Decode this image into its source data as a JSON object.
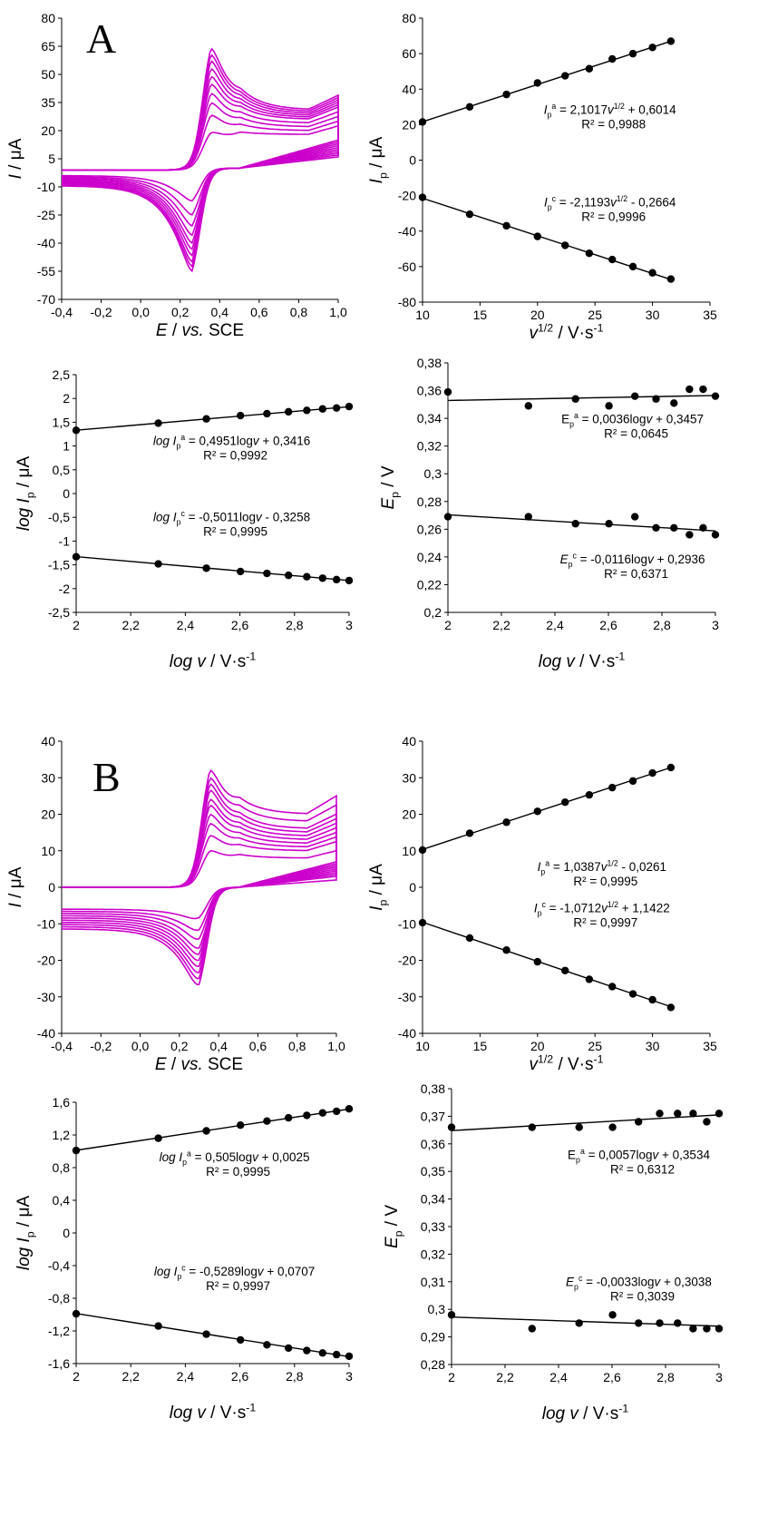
{
  "panels": [
    {
      "letter": "A"
    },
    {
      "letter": "B"
    }
  ],
  "chart_data": [
    {
      "type": "line",
      "panel": "A",
      "description_role": "cyclic-voltammograms",
      "xlabel": [
        "E",
        " / ",
        "vs.",
        " SCE"
      ],
      "ylabel": [
        "I",
        " / μA"
      ],
      "xlim": [
        -0.4,
        1.0
      ],
      "ylim": [
        -70,
        80
      ],
      "xticks": [
        -0.4,
        -0.2,
        0.0,
        0.2,
        0.4,
        0.6,
        0.8,
        1.0
      ],
      "xtick_labels": [
        "-0,4",
        "-0,2",
        "0,0",
        "0,2",
        "0,4",
        "0,6",
        "0,8",
        "1,0"
      ],
      "yticks": [
        -70,
        -55,
        -40,
        -25,
        -10,
        5,
        20,
        35,
        50,
        65,
        80
      ],
      "ytick_labels": [
        "-70",
        "-55",
        "-40",
        "-25",
        "-10",
        "5",
        "20",
        "35",
        "50",
        "65",
        "80"
      ],
      "line_color": "#cc00cc",
      "cv": {
        "Ea": 0.355,
        "Ec": 0.26,
        "ipa": [
          23,
          34,
          42,
          48,
          54,
          59,
          64,
          69,
          73,
          77
        ],
        "ipc": [
          -21,
          -30,
          -37,
          -43,
          -48,
          -52,
          -56,
          -60,
          -63,
          -66
        ],
        "base_low": -1,
        "base_high_ox": [
          18,
          20,
          22,
          24,
          26,
          27,
          28,
          29,
          30,
          31
        ],
        "base_high_red": [
          6,
          7,
          8,
          9,
          10,
          11,
          12,
          13,
          14,
          15
        ],
        "base_neg": -4
      }
    },
    {
      "type": "scatter",
      "panel": "A",
      "xlabel": [
        "v",
        "1/2",
        " / V·s",
        "-1"
      ],
      "ylabel": [
        "I",
        "p",
        " / μA"
      ],
      "xlim": [
        10,
        35
      ],
      "ylim": [
        -80,
        80
      ],
      "xticks": [
        10,
        15,
        20,
        25,
        30,
        35
      ],
      "xtick_labels": [
        "10",
        "15",
        "20",
        "25",
        "30",
        "35"
      ],
      "yticks": [
        -80,
        -60,
        -40,
        -20,
        0,
        20,
        40,
        60,
        80
      ],
      "ytick_labels": [
        "-80",
        "-60",
        "-40",
        "-20",
        "0",
        "20",
        "40",
        "60",
        "80"
      ],
      "series": [
        {
          "x": [
            10,
            14.1,
            17.3,
            20,
            22.4,
            24.5,
            26.5,
            28.3,
            30,
            31.6
          ],
          "y": [
            21.5,
            30,
            37,
            43.5,
            47.5,
            51.5,
            57,
            60,
            63.5,
            67
          ],
          "fit": [
            2.1017,
            0.6014
          ]
        },
        {
          "x": [
            10,
            14.1,
            17.3,
            20,
            22.4,
            24.5,
            26.5,
            28.3,
            30,
            31.6
          ],
          "y": [
            -21,
            -30.5,
            -37,
            -43,
            -48,
            -52.5,
            -56,
            -60,
            -63.5,
            -67
          ],
          "fit": [
            -2.1193,
            -0.2664
          ]
        }
      ],
      "annotations": [
        {
          "pre": "I",
          "sub": "p",
          "sup": "a",
          "text": " = 2,1017",
          "var": "v",
          "varsup": "1/2",
          "tail": " + 0,6014",
          "r2": "R² = 0,9988",
          "ax": 26.3,
          "ay": 26
        },
        {
          "pre": "I",
          "sub": "p",
          "sup": "c",
          "text": " = -2,1193",
          "var": "v",
          "varsup": "1/2",
          "tail": " - 0,2664",
          "r2": "R² = 0,9996",
          "ax": 26.3,
          "ay": -26
        }
      ]
    },
    {
      "type": "scatter",
      "panel": "A",
      "xlabel": [
        "log ",
        "v",
        " / V·s",
        "-1"
      ],
      "ylabel": [
        "log ",
        "I",
        "p",
        " / μA"
      ],
      "xlim": [
        2,
        3
      ],
      "ylim": [
        -2.5,
        2.5
      ],
      "xticks": [
        2,
        2.2,
        2.4,
        2.6,
        2.8,
        3
      ],
      "xtick_labels": [
        "2",
        "2,2",
        "2,4",
        "2,6",
        "2,8",
        "3"
      ],
      "yticks": [
        -2.5,
        -2,
        -1.5,
        -1,
        -0.5,
        0,
        0.5,
        1,
        1.5,
        2,
        2.5
      ],
      "ytick_labels": [
        "-2,5",
        "-2",
        "-1,5",
        "-1",
        "-0,5",
        "0",
        "0,5",
        "1",
        "1,5",
        "2",
        "2,5"
      ],
      "series": [
        {
          "x": [
            2,
            2.301,
            2.477,
            2.602,
            2.699,
            2.778,
            2.845,
            2.903,
            2.954,
            3
          ],
          "y": [
            1.33,
            1.48,
            1.57,
            1.64,
            1.68,
            1.72,
            1.75,
            1.78,
            1.8,
            1.83
          ],
          "fit": [
            0.4951,
            0.3416
          ]
        },
        {
          "x": [
            2,
            2.301,
            2.477,
            2.602,
            2.699,
            2.778,
            2.845,
            2.903,
            2.954,
            3
          ],
          "y": [
            -1.33,
            -1.48,
            -1.57,
            -1.64,
            -1.68,
            -1.72,
            -1.75,
            -1.78,
            -1.81,
            -1.83
          ],
          "fit": [
            -0.5011,
            -0.3258
          ]
        }
      ],
      "annotations": [
        {
          "pre": "log I",
          "sub": "p",
          "sup": "a",
          "text": " = 0,4951log",
          "var": "v",
          "varsup": "",
          "tail": " + 0,3416",
          "r2": "R² = 0,9992",
          "ax": 2.57,
          "ay": 1.02
        },
        {
          "pre": "log I",
          "sub": "p",
          "sup": "c",
          "text": " = -0,5011log",
          "var": "v",
          "varsup": "",
          "tail": " - 0,3258",
          "r2": "R² = 0,9995",
          "ax": 2.57,
          "ay": -0.58
        }
      ]
    },
    {
      "type": "scatter",
      "panel": "A",
      "xlabel": [
        "log ",
        "v",
        " / V·s",
        "-1"
      ],
      "ylabel": [
        "E",
        "p",
        " / V"
      ],
      "xlim": [
        2,
        3
      ],
      "ylim": [
        0.2,
        0.38
      ],
      "xticks": [
        2,
        2.2,
        2.4,
        2.6,
        2.8,
        3
      ],
      "xtick_labels": [
        "2",
        "2,2",
        "2,4",
        "2,6",
        "2,8",
        "3"
      ],
      "yticks": [
        0.2,
        0.22,
        0.24,
        0.26,
        0.28,
        0.3,
        0.32,
        0.34,
        0.36,
        0.38
      ],
      "ytick_labels": [
        "0,2",
        "0,22",
        "0,24",
        "0,26",
        "0,28",
        "0,3",
        "0,32",
        "0,34",
        "0,36",
        "0,38"
      ],
      "series": [
        {
          "x": [
            2,
            2.301,
            2.477,
            2.602,
            2.699,
            2.778,
            2.845,
            2.903,
            2.954,
            3
          ],
          "y": [
            0.359,
            0.349,
            0.354,
            0.349,
            0.356,
            0.354,
            0.351,
            0.361,
            0.361,
            0.356
          ],
          "fit": [
            0.0036,
            0.3457
          ]
        },
        {
          "x": [
            2,
            2.301,
            2.477,
            2.602,
            2.699,
            2.778,
            2.845,
            2.903,
            2.954,
            3
          ],
          "y": [
            0.269,
            0.269,
            0.264,
            0.264,
            0.269,
            0.261,
            0.261,
            0.256,
            0.261,
            0.256
          ],
          "fit": [
            -0.0116,
            0.2936
          ]
        }
      ],
      "annotations": [
        {
          "pre": "E",
          "sub": "p",
          "sup": "a",
          "text": " = 0,0036log",
          "var": "v",
          "varsup": "",
          "tail": " + 0,3457",
          "r2": "R² = 0,0645",
          "ax": 2.69,
          "ay": 0.3365,
          "plain": true
        },
        {
          "pre": "E",
          "sub": "p",
          "sup": "c",
          "text": " = -0,0116log",
          "var": "v",
          "varsup": "",
          "tail": " + 0,2936",
          "r2": "R² = 0,6371",
          "ax": 2.69,
          "ay": 0.2355
        }
      ]
    },
    {
      "type": "line",
      "panel": "B",
      "xlabel": [
        "E",
        " / ",
        "vs.",
        " SCE"
      ],
      "ylabel": [
        "I",
        " / μA"
      ],
      "xlim": [
        -0.4,
        1.0
      ],
      "ylim": [
        -40,
        40
      ],
      "xticks": [
        -0.4,
        -0.2,
        0.0,
        0.2,
        0.4,
        0.6,
        0.8,
        1.0
      ],
      "xtick_labels": [
        "-0,4",
        "-0,2",
        "0,0",
        "0,2",
        "0,4",
        "0,6",
        "0,8",
        "1,0"
      ],
      "yticks": [
        -40,
        -30,
        -20,
        -10,
        0,
        10,
        20,
        30,
        40
      ],
      "ytick_labels": [
        "-40",
        "-30",
        "-20",
        "-10",
        "0",
        "10",
        "20",
        "30",
        "40"
      ],
      "line_color": "#cc00cc",
      "cv": {
        "Ea": 0.355,
        "Ec": 0.3,
        "ipa": [
          12,
          17,
          21,
          24,
          27,
          29,
          32,
          34,
          36,
          38.5
        ],
        "ipc": [
          -10,
          -14,
          -17,
          -20,
          -22,
          -24,
          -26,
          -28,
          -30,
          -32
        ],
        "base_low": 0,
        "base_high_ox": [
          8,
          10,
          11,
          12,
          13,
          14,
          15,
          16,
          18,
          20
        ],
        "base_high_red": [
          2,
          3,
          3.5,
          4,
          4.5,
          5,
          5.5,
          6,
          6.5,
          7
        ],
        "base_neg": -6
      }
    },
    {
      "type": "scatter",
      "panel": "B",
      "xlabel": [
        "v",
        "1/2",
        " / V·s",
        "-1"
      ],
      "ylabel": [
        "I",
        "p",
        " / μA"
      ],
      "xlim": [
        10,
        35
      ],
      "ylim": [
        -40,
        40
      ],
      "xticks": [
        10,
        15,
        20,
        25,
        30,
        35
      ],
      "xtick_labels": [
        "10",
        "15",
        "20",
        "25",
        "30",
        "35"
      ],
      "yticks": [
        -40,
        -30,
        -20,
        -10,
        0,
        10,
        20,
        30,
        40
      ],
      "ytick_labels": [
        "-40",
        "-30",
        "-20",
        "-10",
        "0",
        "10",
        "20",
        "30",
        "40"
      ],
      "series": [
        {
          "x": [
            10,
            14.1,
            17.3,
            20,
            22.4,
            24.5,
            26.5,
            28.3,
            30,
            31.6
          ],
          "y": [
            10.2,
            14.8,
            17.8,
            20.8,
            23.3,
            25.3,
            27.3,
            29.1,
            31.3,
            32.8
          ],
          "fit": [
            1.0387,
            -0.0261
          ]
        },
        {
          "x": [
            10,
            14.1,
            17.3,
            20,
            22.4,
            24.5,
            26.5,
            28.3,
            30,
            31.6
          ],
          "y": [
            -9.7,
            -13.9,
            -17.2,
            -20.4,
            -22.8,
            -25.2,
            -27.2,
            -29.2,
            -30.8,
            -32.9
          ],
          "fit": [
            -1.0712,
            1.1422
          ]
        }
      ],
      "annotations": [
        {
          "pre": "I",
          "sub": "p",
          "sup": "a",
          "text": " = 1,0387",
          "var": "v",
          "varsup": "1/2",
          "tail": " - 0,0261",
          "r2": "R² = 0,9995",
          "ax": 25.6,
          "ay": 4.5
        },
        {
          "pre": "I",
          "sub": "p",
          "sup": "c",
          "text": " = -1,0712",
          "var": "v",
          "varsup": "1/2",
          "tail": " + 1,1422",
          "r2": "R² = 0,9997",
          "ax": 25.6,
          "ay": -6.8
        }
      ]
    },
    {
      "type": "scatter",
      "panel": "B",
      "xlabel": [
        "log ",
        "v",
        " / V·s",
        "-1"
      ],
      "ylabel": [
        "log ",
        "I",
        "p",
        " / μA"
      ],
      "xlim": [
        2,
        3
      ],
      "ylim": [
        -1.6,
        1.6
      ],
      "xticks": [
        2,
        2.2,
        2.4,
        2.6,
        2.8,
        3
      ],
      "xtick_labels": [
        "2",
        "2,2",
        "2,4",
        "2,6",
        "2,8",
        "3"
      ],
      "yticks": [
        -1.6,
        -1.2,
        -0.8,
        -0.4,
        0,
        0.4,
        0.8,
        1.2,
        1.6
      ],
      "ytick_labels": [
        "-1,6",
        "-1,2",
        "-0,8",
        "-0,4",
        "0",
        "0,4",
        "0,8",
        "1,2",
        "1,6"
      ],
      "series": [
        {
          "x": [
            2,
            2.301,
            2.477,
            2.602,
            2.699,
            2.778,
            2.845,
            2.903,
            2.954,
            3
          ],
          "y": [
            1.01,
            1.16,
            1.25,
            1.32,
            1.37,
            1.41,
            1.44,
            1.47,
            1.49,
            1.52
          ],
          "fit": [
            0.505,
            0.0025
          ]
        },
        {
          "x": [
            2,
            2.301,
            2.477,
            2.602,
            2.699,
            2.778,
            2.845,
            2.903,
            2.954,
            3
          ],
          "y": [
            -0.99,
            -1.14,
            -1.24,
            -1.31,
            -1.37,
            -1.41,
            -1.44,
            -1.47,
            -1.49,
            -1.51
          ],
          "fit": [
            -0.5289,
            0.0707
          ]
        }
      ],
      "annotations": [
        {
          "pre": "log I",
          "sub": "p",
          "sup": "a",
          "text": " = 0,505log",
          "var": "v",
          "varsup": "",
          "tail": " + 0,0025",
          "r2": "R² = 0,9995",
          "ax": 2.58,
          "ay": 0.88
        },
        {
          "pre": "log I",
          "sub": "p",
          "sup": "c",
          "text": " = -0,5289log",
          "var": "v",
          "varsup": "",
          "tail": " + 0,0707",
          "r2": "R² = 0,9997",
          "ax": 2.58,
          "ay": -0.52
        }
      ]
    },
    {
      "type": "scatter",
      "panel": "B",
      "xlabel": [
        "log ",
        "v",
        " / V·s",
        "-1"
      ],
      "ylabel": [
        "E",
        "p",
        " / V"
      ],
      "xlim": [
        2,
        3
      ],
      "ylim": [
        0.28,
        0.38
      ],
      "xticks": [
        2,
        2.2,
        2.4,
        2.6,
        2.8,
        3
      ],
      "xtick_labels": [
        "2",
        "2,2",
        "2,4",
        "2,6",
        "2,8",
        "3"
      ],
      "yticks": [
        0.28,
        0.29,
        0.3,
        0.31,
        0.32,
        0.33,
        0.34,
        0.35,
        0.36,
        0.37,
        0.38
      ],
      "ytick_labels": [
        "0,28",
        "0,29",
        "0,3",
        "0,31",
        "0,32",
        "0,33",
        "0,34",
        "0,35",
        "0,36",
        "0,37",
        "0,38"
      ],
      "series": [
        {
          "x": [
            2,
            2.301,
            2.477,
            2.602,
            2.699,
            2.778,
            2.845,
            2.903,
            2.954,
            3
          ],
          "y": [
            0.366,
            0.366,
            0.366,
            0.366,
            0.368,
            0.371,
            0.371,
            0.371,
            0.368,
            0.371
          ],
          "fit": [
            0.0057,
            0.3534
          ]
        },
        {
          "x": [
            2,
            2.301,
            2.477,
            2.602,
            2.699,
            2.778,
            2.845,
            2.903,
            2.954,
            3
          ],
          "y": [
            0.298,
            0.293,
            0.295,
            0.298,
            0.295,
            0.295,
            0.295,
            0.293,
            0.293,
            0.293
          ],
          "fit": [
            -0.0033,
            0.3038
          ]
        }
      ],
      "annotations": [
        {
          "pre": "E",
          "sub": "p",
          "sup": "a",
          "text": " = 0,0057log",
          "var": "v",
          "varsup": "",
          "tail": " + 0,3534",
          "r2": "R² = 0,6312",
          "ax": 2.7,
          "ay": 0.3545,
          "plain": true
        },
        {
          "pre": "E",
          "sub": "p",
          "sup": "c",
          "text": " = -0,0033log",
          "var": "v",
          "varsup": "",
          "tail": " + 0,3038",
          "r2": "R² = 0,3039",
          "ax": 2.7,
          "ay": 0.3085
        }
      ]
    }
  ]
}
